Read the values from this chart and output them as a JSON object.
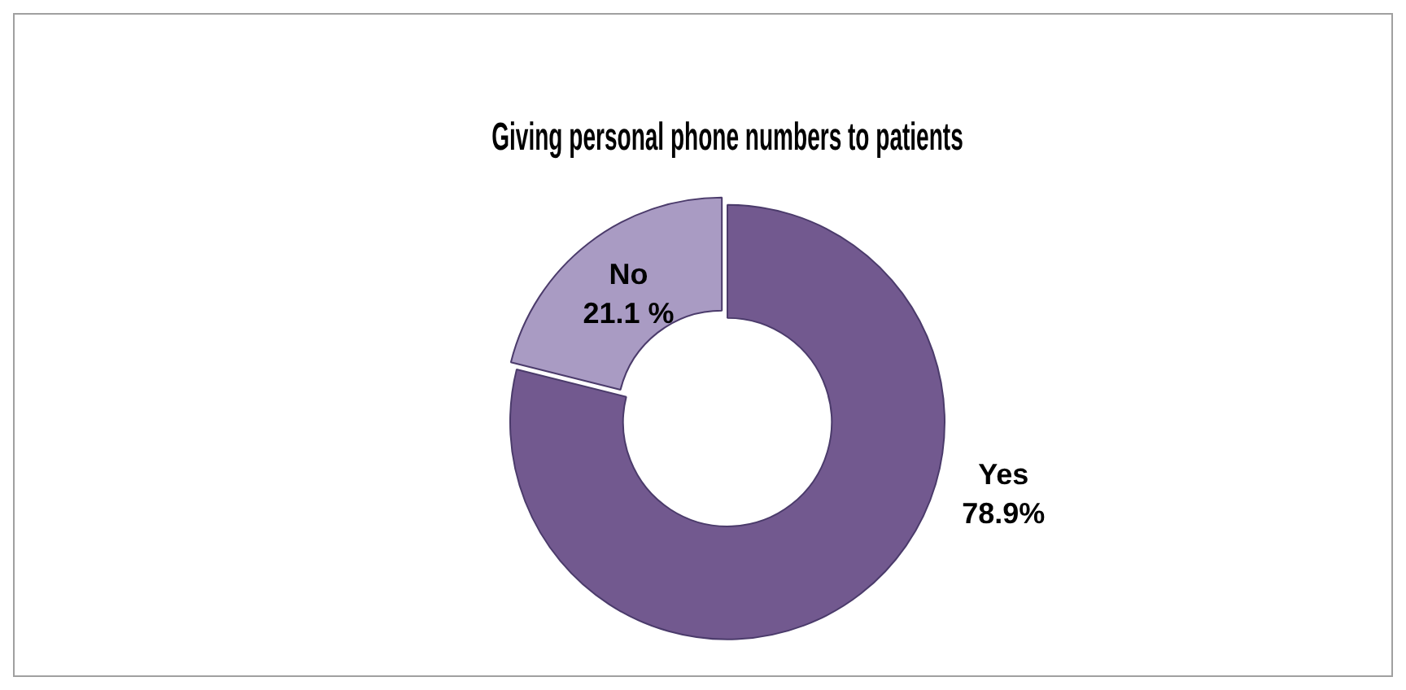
{
  "chart_data": {
    "type": "donut",
    "title": "Giving personal phone numbers to patients",
    "categories": [
      "Yes",
      "No"
    ],
    "values": [
      78.9,
      21.1
    ],
    "value_labels": [
      "78.9%",
      "21.1 %"
    ],
    "colors": [
      "#72598f",
      "#a99bc3"
    ],
    "legend": false
  }
}
